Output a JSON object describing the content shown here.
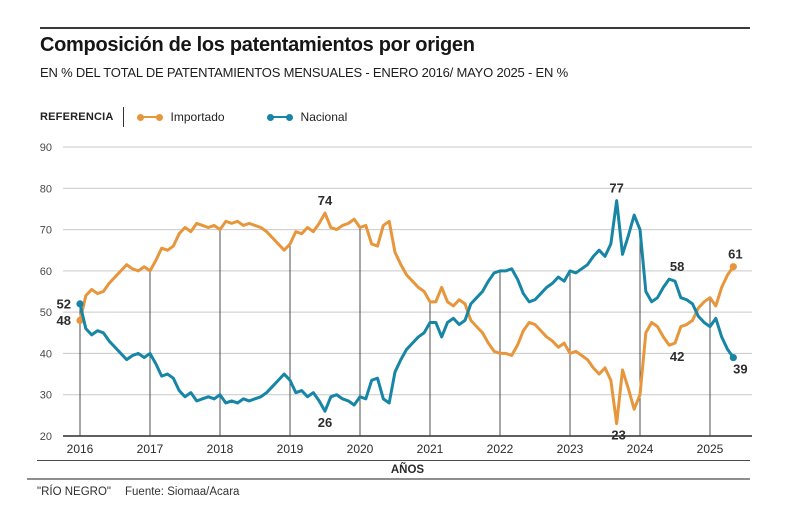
{
  "header": {
    "title": "Composición de los patentamientos por origen",
    "subtitle": "EN % DEL TOTAL DE PATENTAMIENTOS MENSUALES - ENERO 2016/ MAYO 2025 - EN %"
  },
  "legend": {
    "reference_label": "REFERENCIA",
    "items": [
      {
        "label": "Importado",
        "color": "#E8963C"
      },
      {
        "label": "Nacional",
        "color": "#1786A6"
      }
    ]
  },
  "footer": {
    "credit": "\"RÍO NEGRO\"",
    "source": "Fuente: Siomaa/Acara"
  },
  "chart_data": {
    "type": "line",
    "title": "Composición de los patentamientos por origen",
    "xlabel": "AÑOS",
    "ylabel": "% del total de patentamientos mensuales",
    "ylim": [
      20,
      90
    ],
    "y_ticks": [
      20,
      30,
      40,
      50,
      60,
      70,
      80,
      90
    ],
    "x_tick_labels": [
      "2016",
      "2017",
      "2018",
      "2019",
      "2020",
      "2021",
      "2022",
      "2023",
      "2024",
      "2025"
    ],
    "x_period": "monthly from 2016-01 to 2025-05",
    "grid": {
      "horizontal": true,
      "vertical_year_lines": true
    },
    "series": [
      {
        "name": "Importado",
        "color": "#E8963C",
        "values": [
          48,
          54,
          55.5,
          54.5,
          55,
          57,
          58.5,
          60,
          61.5,
          60.5,
          60,
          61,
          60,
          62.5,
          65.5,
          65,
          66,
          69,
          70.5,
          69.5,
          71.5,
          71,
          70.5,
          71,
          70,
          72,
          71.5,
          72,
          71,
          71.5,
          71,
          70.5,
          69.5,
          68,
          66.5,
          65,
          66.5,
          69.5,
          69,
          70.5,
          69.5,
          71.5,
          74,
          70.5,
          70,
          71,
          71.5,
          72.5,
          70.5,
          71,
          66.5,
          66,
          71,
          72,
          64.5,
          61.5,
          59,
          57.5,
          56,
          55,
          52.5,
          52.5,
          56,
          52.5,
          51.5,
          53,
          52,
          48,
          46.5,
          45,
          42.5,
          40.5,
          40,
          40,
          39.5,
          42,
          45.5,
          47.5,
          47,
          45.5,
          44,
          43,
          41.5,
          42.5,
          40,
          40.5,
          39.5,
          38.5,
          36.5,
          35,
          36.5,
          33.5,
          23,
          36,
          31.5,
          26.5,
          30,
          45,
          47.5,
          46.5,
          44,
          42,
          42.5,
          46.5,
          47,
          48,
          51,
          52.5,
          53.5,
          51.5,
          56,
          59,
          61
        ]
      },
      {
        "name": "Nacional",
        "color": "#1786A6",
        "values": [
          52,
          46,
          44.5,
          45.5,
          45,
          43,
          41.5,
          40,
          38.5,
          39.5,
          40,
          39,
          40,
          37.5,
          34.5,
          35,
          34,
          31,
          29.5,
          30.5,
          28.5,
          29,
          29.5,
          29,
          30,
          28,
          28.5,
          28,
          29,
          28.5,
          29,
          29.5,
          30.5,
          32,
          33.5,
          35,
          33.5,
          30.5,
          31,
          29.5,
          30.5,
          28.5,
          26,
          29.5,
          30,
          29,
          28.5,
          27.5,
          29.5,
          29,
          33.5,
          34,
          29,
          28,
          35.5,
          38.5,
          41,
          42.5,
          44,
          45,
          47.5,
          47.5,
          44,
          47.5,
          48.5,
          47,
          48,
          52,
          53.5,
          55,
          57.5,
          59.5,
          60,
          60,
          60.5,
          58,
          54.5,
          52.5,
          53,
          54.5,
          56,
          57,
          58.5,
          57.5,
          60,
          59.5,
          60.5,
          61.5,
          63.5,
          65,
          63.5,
          66.5,
          77,
          64,
          68.5,
          73.5,
          70,
          55,
          52.5,
          53.5,
          56,
          58,
          57.5,
          53.5,
          53,
          52,
          49,
          47.5,
          46.5,
          48.5,
          44,
          41,
          39
        ]
      }
    ],
    "annotations": [
      {
        "text": "52",
        "series": "Nacional",
        "month_index": 0,
        "position": "left",
        "dx": 0
      },
      {
        "text": "48",
        "series": "Importado",
        "month_index": 0,
        "position": "left",
        "dx": 0
      },
      {
        "text": "74",
        "series": "Importado",
        "month_index": 42,
        "position": "above",
        "dx": 0
      },
      {
        "text": "26",
        "series": "Nacional",
        "month_index": 42,
        "position": "below",
        "dx": 0
      },
      {
        "text": "77",
        "series": "Nacional",
        "month_index": 92,
        "position": "above",
        "dx": 0
      },
      {
        "text": "23",
        "series": "Importado",
        "month_index": 92,
        "position": "below",
        "dx": 2
      },
      {
        "text": "58",
        "series": "Nacional",
        "month_index": 101,
        "position": "above",
        "dx": 8
      },
      {
        "text": "42",
        "series": "Importado",
        "month_index": 101,
        "position": "below",
        "dx": 8
      },
      {
        "text": "61",
        "series": "Importado",
        "month_index": 112,
        "position": "above",
        "dx": 2
      },
      {
        "text": "39",
        "series": "Nacional",
        "month_index": 112,
        "position": "below",
        "dx": 7
      }
    ]
  }
}
